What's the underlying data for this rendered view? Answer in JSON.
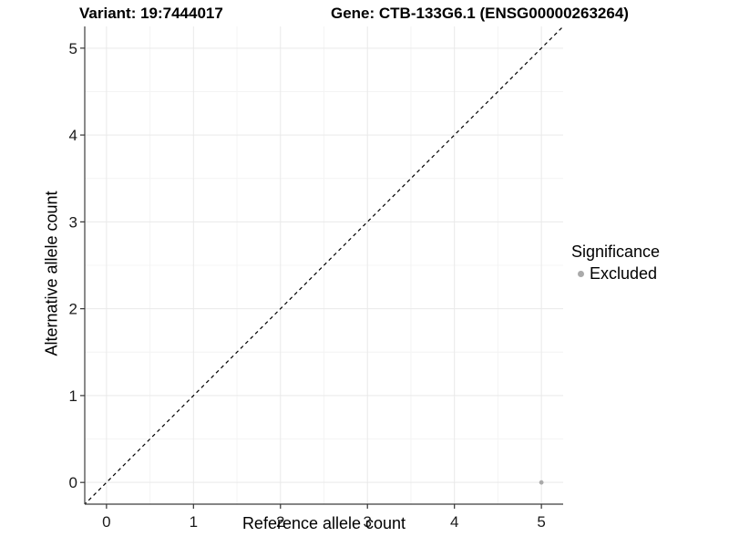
{
  "chart_data": {
    "type": "scatter",
    "title_left": "Variant: 19:7444017",
    "title_right": "Gene: CTB-133G6.1 (ENSG00000263264)",
    "xlabel": "Reference allele count",
    "ylabel": "Alternative allele count",
    "xlim": [
      -0.25,
      5.25
    ],
    "ylim": [
      -0.25,
      5.25
    ],
    "xticks": [
      0,
      1,
      2,
      3,
      4,
      5
    ],
    "yticks": [
      0,
      1,
      2,
      3,
      4,
      5
    ],
    "minor_ticks": [
      0.5,
      1.5,
      2.5,
      3.5,
      4.5
    ],
    "grid": "major and minor gridlines, very light grey, white panel background",
    "reference_line": {
      "equation": "y = x",
      "style": "dashed",
      "color": "#000000"
    },
    "series": [
      {
        "name": "Excluded",
        "color": "#aaaaaa",
        "points": [
          {
            "x": 5,
            "y": 0
          }
        ]
      }
    ],
    "legend": {
      "title": "Significance",
      "position": "right",
      "items": [
        {
          "label": "Excluded",
          "color": "#aaaaaa"
        }
      ]
    }
  },
  "colors": {
    "axis_line": "#3c3c3c",
    "tick_mark": "#333333",
    "tick_label": "#1a1a1a",
    "grid_major": "#e9e9e9",
    "grid_minor": "#f4f4f4",
    "background": "#ffffff"
  }
}
